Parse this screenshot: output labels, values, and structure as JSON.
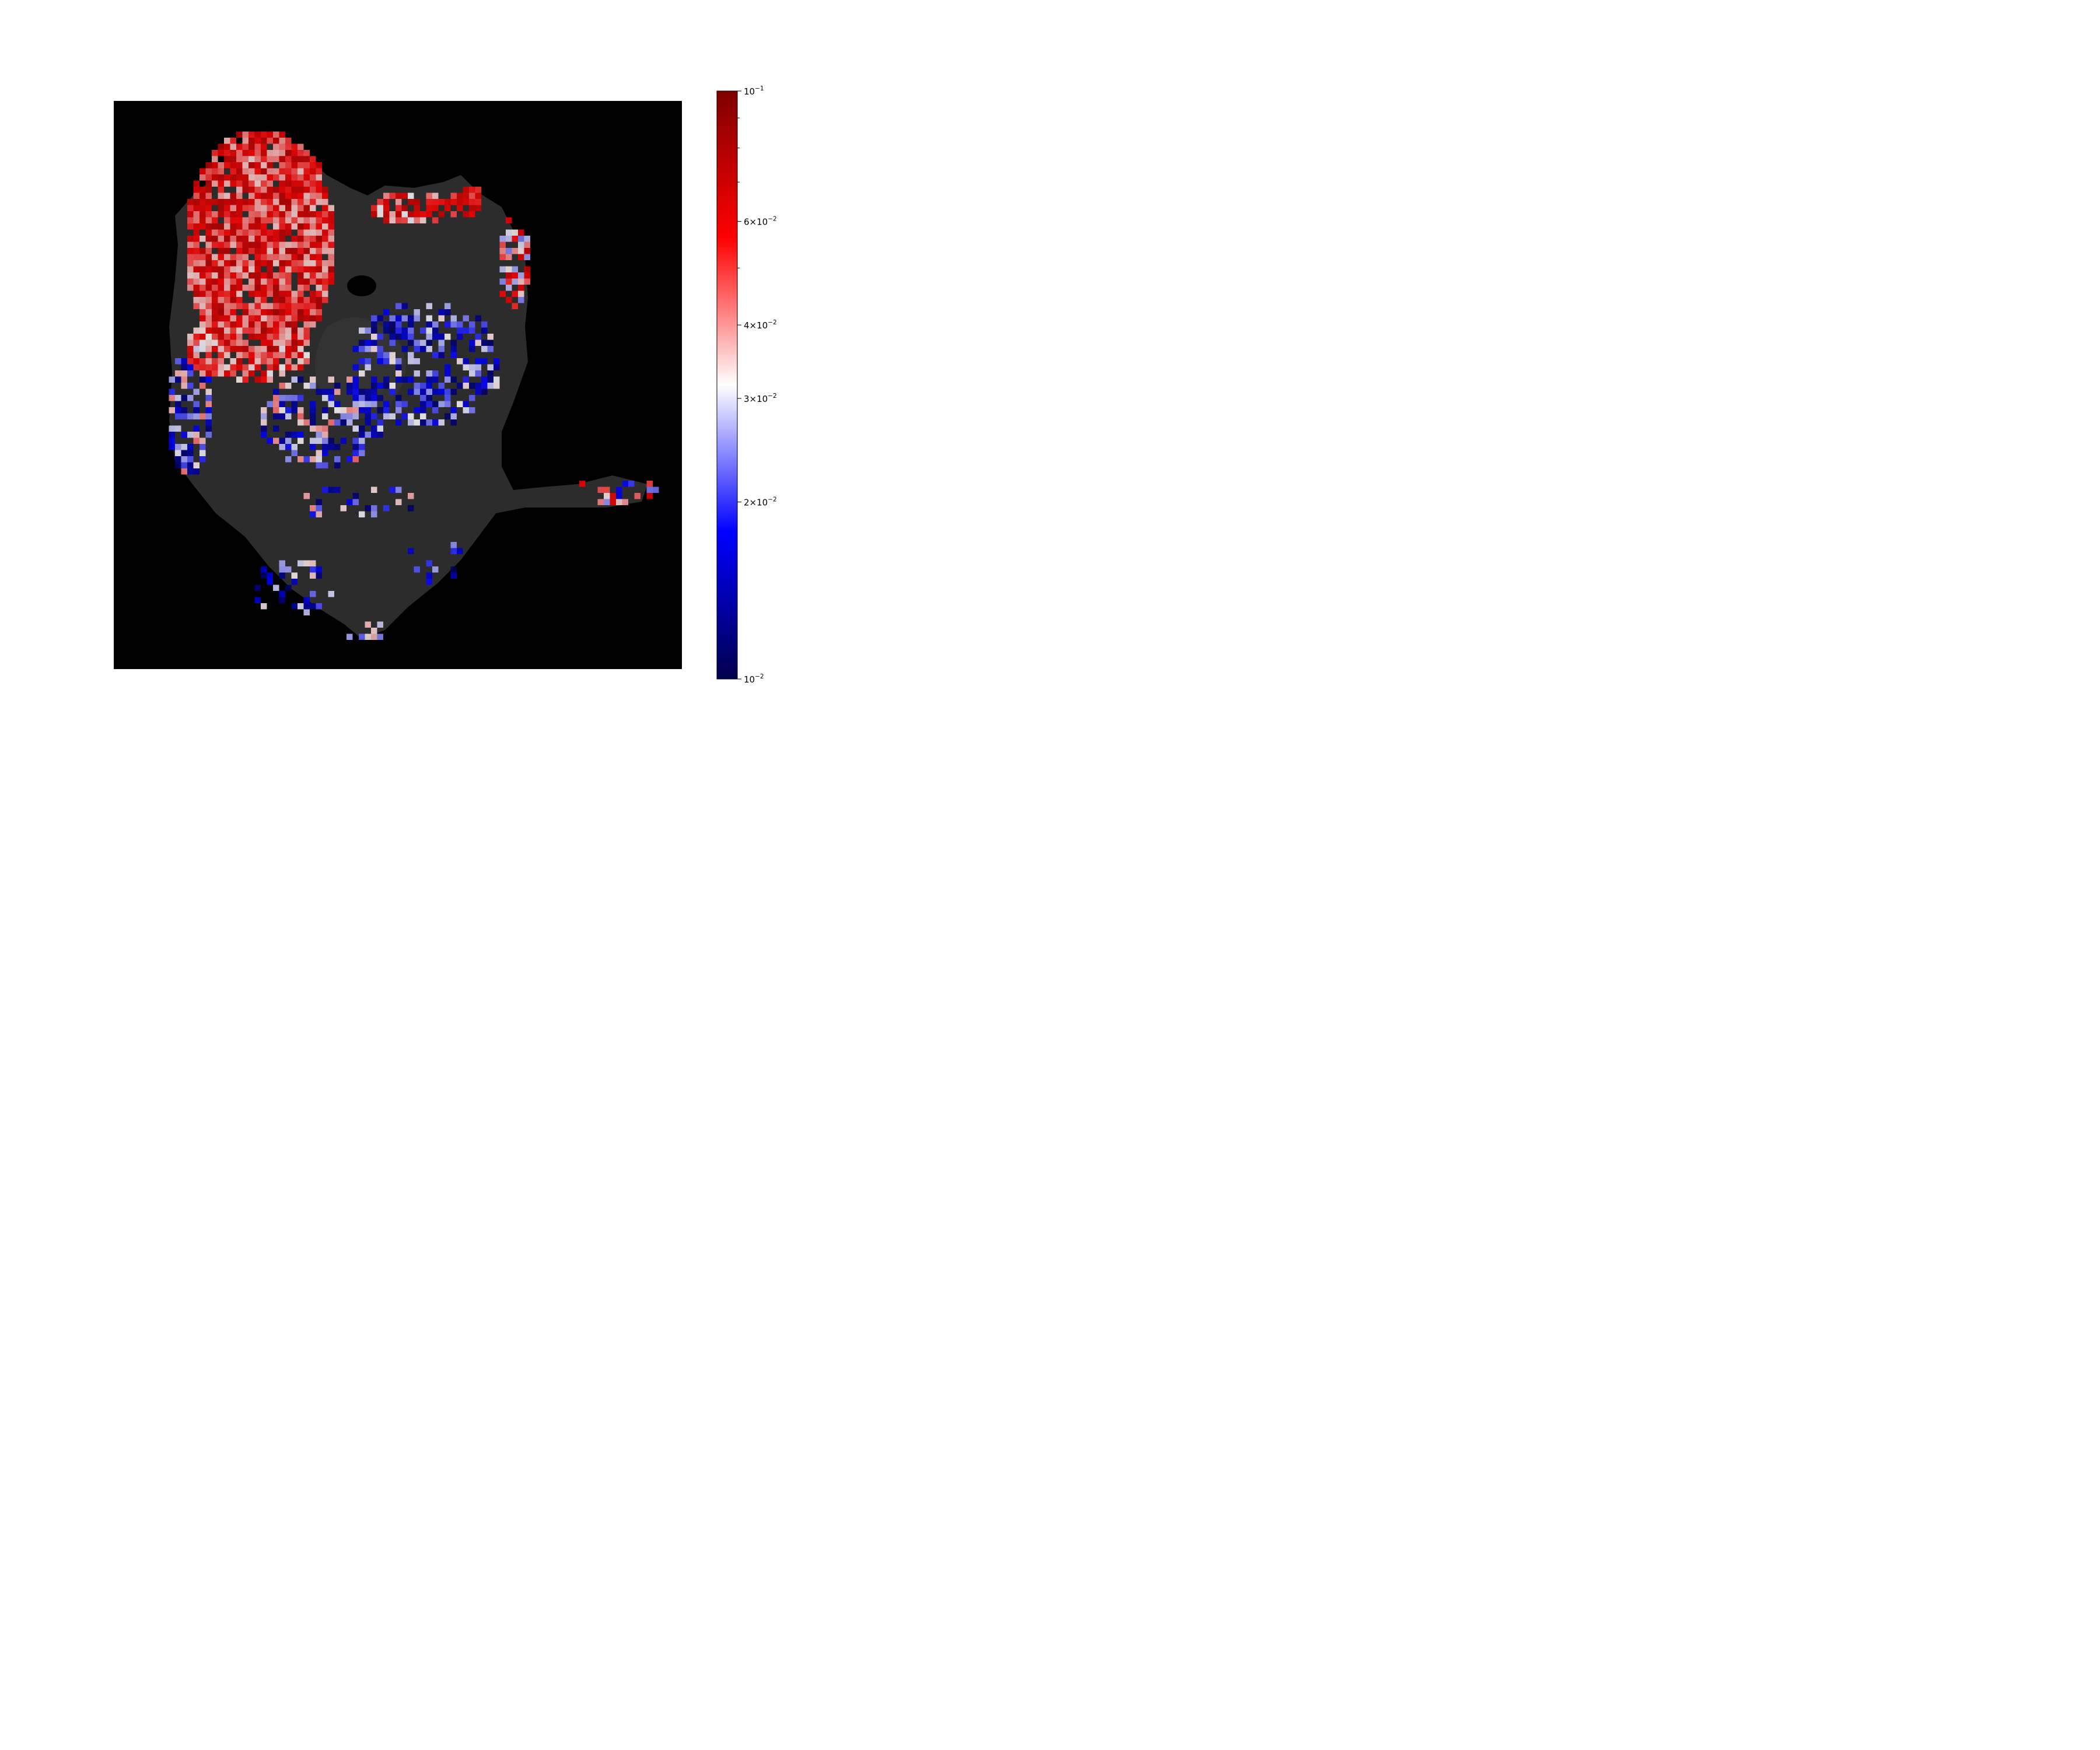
{
  "chart_data": {
    "type": "heatmap",
    "title": "",
    "xlabel": "",
    "ylabel": "",
    "axes_visible": false,
    "background": "tissue image (grayscale) on black",
    "grid": false,
    "colormap": {
      "name": "seismic",
      "scale": "log",
      "range": [
        0.01,
        0.1
      ],
      "stops": [
        "#00004c",
        "#0000ff",
        "#ffffff",
        "#ff0000",
        "#7f0000"
      ],
      "placement": "right"
    },
    "colorbar_ticks": [
      {
        "value": 0.1,
        "mantissa": "",
        "exponent": "−1"
      },
      {
        "value": 0.06,
        "mantissa": "6",
        "exponent": "−2"
      },
      {
        "value": 0.04,
        "mantissa": "4",
        "exponent": "−2"
      },
      {
        "value": 0.03,
        "mantissa": "3",
        "exponent": "−2"
      },
      {
        "value": 0.02,
        "mantissa": "2",
        "exponent": "−2"
      },
      {
        "value": 0.01,
        "mantissa": "",
        "exponent": "−2"
      }
    ],
    "colorbar_minor_values": [
      0.05,
      0.07,
      0.08,
      0.09
    ]
  }
}
